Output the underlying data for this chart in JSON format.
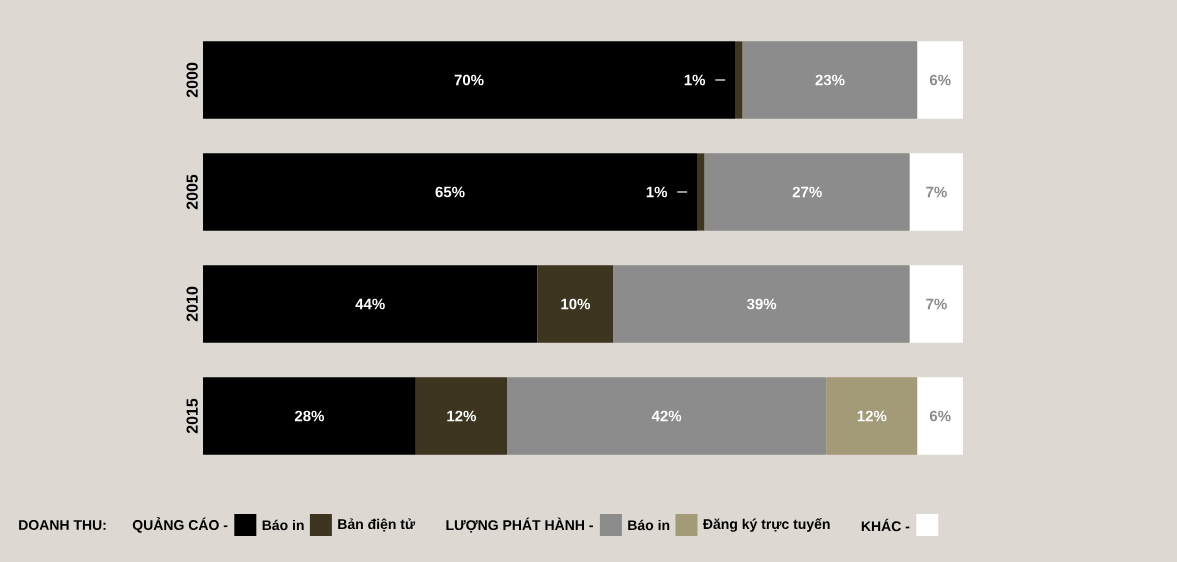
{
  "chart_data": {
    "type": "bar",
    "orientation": "horizontal",
    "stacked": true,
    "categories": [
      "2000",
      "2005",
      "2010",
      "2015"
    ],
    "xlim": [
      0,
      100
    ],
    "tick_labels": "y",
    "legend": "bottom",
    "legend_title": "DOANH THU:",
    "annotations": [
      "QUẢNG CÁO -",
      "LƯỢNG PHÁT HÀNH -",
      "KHÁC -"
    ],
    "series": [
      {
        "name": "Báo in",
        "color": "#000000",
        "values": [
          70,
          65,
          44,
          28
        ],
        "value_labels": [
          "70%",
          "65%",
          "44%",
          "28%"
        ]
      },
      {
        "name": "Bản điện tử",
        "color": "#3d3520",
        "values": [
          1,
          1,
          10,
          12
        ],
        "value_labels": [
          "1%",
          "1%",
          "10%",
          "12%"
        ]
      },
      {
        "name": "Báo in",
        "color": "#8c8c8c",
        "values": [
          23,
          27,
          39,
          42
        ],
        "value_labels": [
          "23%",
          "27%",
          "39%",
          "42%"
        ]
      },
      {
        "name": "Đăng ký trực tuyến",
        "color": "#a39a78",
        "values": [
          null,
          null,
          null,
          12
        ],
        "value_labels": [
          null,
          null,
          null,
          "12%"
        ]
      },
      {
        "color": "#ffffff",
        "values": [
          6,
          7,
          7,
          6
        ],
        "value_labels": [
          "6%",
          "7%",
          "7%",
          "6%"
        ]
      }
    ]
  }
}
